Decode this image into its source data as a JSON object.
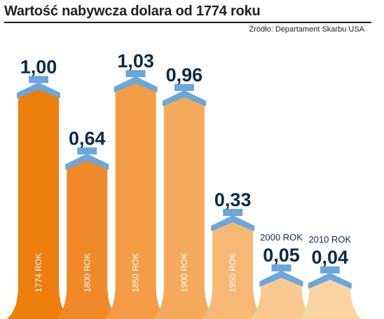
{
  "header": {
    "title": "Wartość nabywcza dolara od 1774 roku",
    "source": "Źródło: Departament Skarbu USA"
  },
  "colors": {
    "arrow": "#6aa7dc",
    "value_text": "#0b2a4a",
    "bars": [
      "#ee7e0e",
      "#f0892a",
      "#f39c45",
      "#f5a95a",
      "#f7b873",
      "#f9c890",
      "#fad3a3"
    ]
  },
  "chart_data": {
    "type": "bar",
    "title": "Wartość nabywcza dolara od 1774 roku",
    "categories": [
      "1774 ROK",
      "1800 ROK",
      "1850 ROK",
      "1900 ROK",
      "1950 ROK",
      "2000 ROK",
      "2010 ROK"
    ],
    "values": [
      1.0,
      0.64,
      1.03,
      0.96,
      0.33,
      0.05,
      0.04
    ],
    "value_labels": [
      "1,00",
      "0,64",
      "1,03",
      "0,96",
      "0,33",
      "0,05",
      "0,04"
    ],
    "xlabel": "",
    "ylabel": "",
    "ylim": [
      0,
      1.03
    ],
    "grid": false,
    "legend": "none"
  }
}
